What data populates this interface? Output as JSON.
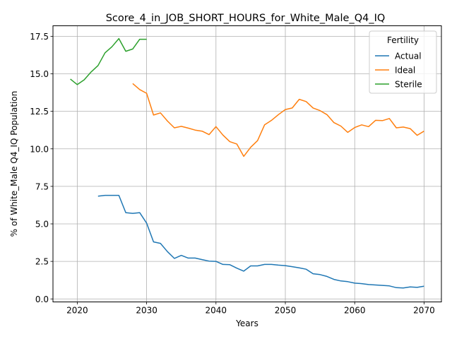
{
  "chart_data": {
    "type": "line",
    "title": "Score_4_in_JOB_SHORT_HOURS_for_White_Male_Q4_IQ",
    "xlabel": "Years",
    "ylabel": "% of White_Male Q4_IQ Population",
    "xlim": [
      2016.5,
      2072.5
    ],
    "ylim": [
      -0.2,
      18.2
    ],
    "xticks": [
      2020,
      2030,
      2040,
      2050,
      2060,
      2070
    ],
    "yticks": [
      0.0,
      2.5,
      5.0,
      7.5,
      10.0,
      12.5,
      15.0,
      17.5
    ],
    "grid": true,
    "legend": {
      "title": "Fertility",
      "position": "top-right"
    },
    "series": [
      {
        "name": "Actual",
        "color": "#1f77b4",
        "x": [
          2023,
          2024,
          2025,
          2026,
          2027,
          2028,
          2029,
          2030,
          2031,
          2032,
          2033,
          2034,
          2035,
          2036,
          2037,
          2038,
          2039,
          2040,
          2041,
          2042,
          2043,
          2044,
          2045,
          2046,
          2047,
          2048,
          2049,
          2050,
          2051,
          2052,
          2053,
          2054,
          2055,
          2056,
          2057,
          2058,
          2059,
          2060,
          2061,
          2062,
          2063,
          2064,
          2065,
          2066,
          2067,
          2068,
          2069,
          2070
        ],
        "y": [
          6.85,
          6.9,
          6.9,
          6.9,
          5.75,
          5.7,
          5.75,
          5.05,
          3.8,
          3.7,
          3.15,
          2.7,
          2.9,
          2.72,
          2.72,
          2.62,
          2.52,
          2.5,
          2.3,
          2.28,
          2.05,
          1.85,
          2.2,
          2.2,
          2.3,
          2.3,
          2.25,
          2.22,
          2.15,
          2.07,
          1.98,
          1.68,
          1.62,
          1.5,
          1.3,
          1.2,
          1.15,
          1.05,
          1.02,
          0.96,
          0.93,
          0.9,
          0.87,
          0.75,
          0.73,
          0.8,
          0.77,
          0.85
        ]
      },
      {
        "name": "Ideal",
        "color": "#ff7f0e",
        "x": [
          2028,
          2029,
          2030,
          2031,
          2032,
          2033,
          2034,
          2035,
          2036,
          2037,
          2038,
          2039,
          2040,
          2041,
          2042,
          2043,
          2044,
          2045,
          2046,
          2047,
          2048,
          2049,
          2050,
          2051,
          2052,
          2053,
          2054,
          2055,
          2056,
          2057,
          2058,
          2059,
          2060,
          2061,
          2062,
          2063,
          2064,
          2065,
          2066,
          2067,
          2068,
          2069,
          2070
        ],
        "y": [
          14.35,
          13.95,
          13.7,
          12.25,
          12.4,
          11.85,
          11.4,
          11.5,
          11.38,
          11.25,
          11.18,
          10.95,
          11.48,
          10.92,
          10.48,
          10.32,
          9.5,
          10.1,
          10.55,
          11.6,
          11.9,
          12.28,
          12.62,
          12.72,
          13.3,
          13.15,
          12.72,
          12.55,
          12.28,
          11.75,
          11.52,
          11.1,
          11.42,
          11.6,
          11.48,
          11.9,
          11.88,
          12.02,
          11.4,
          11.45,
          11.35,
          10.9,
          11.18
        ]
      },
      {
        "name": "Sterile",
        "color": "#2ca02c",
        "x": [
          2019,
          2020,
          2021,
          2022,
          2023,
          2024,
          2025,
          2026,
          2027,
          2028,
          2029,
          2030
        ],
        "y": [
          14.65,
          14.28,
          14.6,
          15.12,
          15.55,
          16.4,
          16.8,
          17.35,
          16.5,
          16.65,
          17.3,
          17.3
        ]
      }
    ]
  }
}
